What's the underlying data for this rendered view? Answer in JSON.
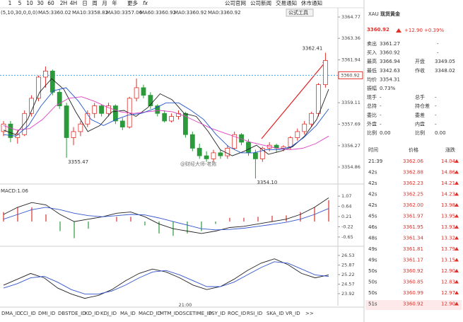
{
  "toolbar": {
    "periods": [
      "1",
      "5",
      "10",
      "30",
      "60",
      "2H",
      "4H",
      "日",
      "周",
      "月",
      "年"
    ],
    "more": "更多",
    "fx": "fx",
    "links": [
      "公司官网",
      "公司新闻",
      "交易通知",
      "休市通知"
    ]
  },
  "indicator_line": {
    "params": "(5,10,30,0,0,0)",
    "items": [
      "MA5:3360.02",
      "MA10:3358.82",
      "MA30:3357.06",
      "MA60:3360.92",
      "MA0:3360.92",
      "MA0:3360.92"
    ],
    "tools": "公式工具"
  },
  "price_chart": {
    "ylim": [
      3353.83,
      3365.24
    ],
    "yticks": [
      3364.77,
      3363.36,
      3361.94,
      3359.11,
      3357.69,
      3356.27,
      3354.86
    ],
    "last_price": 3360.92,
    "candles": [
      [
        3357.2,
        3357.9,
        3356.9,
        3357.7
      ],
      [
        3357.7,
        3357.9,
        3356.5,
        3356.8
      ],
      [
        3356.8,
        3357.3,
        3356.4,
        3357.0
      ],
      [
        3357.0,
        3358.6,
        3356.9,
        3358.4
      ],
      [
        3358.4,
        3359.6,
        3358.2,
        3359.4
      ],
      [
        3359.4,
        3360.9,
        3359.2,
        3360.8
      ],
      [
        3360.8,
        3361.5,
        3360.1,
        3361.2
      ],
      [
        3361.2,
        3361.3,
        3359.6,
        3359.8
      ],
      [
        3359.8,
        3360.0,
        3358.7,
        3358.9
      ],
      [
        3358.9,
        3359.1,
        3355.47,
        3356.8
      ],
      [
        3356.8,
        3357.5,
        3356.3,
        3357.2
      ],
      [
        3357.2,
        3357.9,
        3356.9,
        3357.7
      ],
      [
        3357.7,
        3358.6,
        3357.5,
        3358.4
      ],
      [
        3358.4,
        3359.1,
        3358.1,
        3358.9
      ],
      [
        3358.9,
        3359.0,
        3358.2,
        3358.4
      ],
      [
        3358.4,
        3359.1,
        3358.2,
        3358.9
      ],
      [
        3358.9,
        3359.0,
        3357.7,
        3357.9
      ],
      [
        3357.9,
        3358.1,
        3357.3,
        3357.5
      ],
      [
        3357.5,
        3359.5,
        3357.4,
        3359.4
      ],
      [
        3359.4,
        3360.7,
        3359.2,
        3360.1
      ],
      [
        3360.1,
        3360.3,
        3359.4,
        3359.6
      ],
      [
        3359.6,
        3359.8,
        3358.7,
        3358.9
      ],
      [
        3358.9,
        3359.0,
        3358.2,
        3358.4
      ],
      [
        3358.4,
        3358.6,
        3357.8,
        3357.9
      ],
      [
        3357.9,
        3358.4,
        3357.8,
        3358.2
      ],
      [
        3358.2,
        3358.6,
        3358.0,
        3358.4
      ],
      [
        3358.4,
        3358.5,
        3356.8,
        3357.0
      ],
      [
        3357.0,
        3357.2,
        3355.9,
        3356.1
      ],
      [
        3356.1,
        3356.4,
        3355.4,
        3355.6
      ],
      [
        3355.6,
        3355.9,
        3355.2,
        3355.4
      ],
      [
        3355.4,
        3356.0,
        3355.2,
        3355.8
      ],
      [
        3355.8,
        3356.0,
        3355.4,
        3355.6
      ],
      [
        3355.6,
        3356.3,
        3355.4,
        3356.1
      ],
      [
        3356.1,
        3357.2,
        3356.0,
        3357.0
      ],
      [
        3357.0,
        3357.1,
        3356.3,
        3356.5
      ],
      [
        3356.5,
        3356.7,
        3355.6,
        3355.8
      ],
      [
        3355.8,
        3356.0,
        3354.1,
        3355.4
      ],
      [
        3355.4,
        3356.2,
        3355.2,
        3356.1
      ],
      [
        3356.1,
        3356.5,
        3355.9,
        3356.3
      ],
      [
        3356.3,
        3356.4,
        3355.8,
        3356.1
      ],
      [
        3356.1,
        3356.3,
        3355.9,
        3356.2
      ],
      [
        3356.2,
        3356.9,
        3356.0,
        3356.8
      ],
      [
        3356.8,
        3357.4,
        3356.6,
        3357.2
      ],
      [
        3357.2,
        3357.9,
        3357.0,
        3357.7
      ],
      [
        3357.7,
        3358.5,
        3357.5,
        3358.4
      ],
      [
        3358.4,
        3360.4,
        3358.2,
        3360.3
      ],
      [
        3360.3,
        3362.41,
        3360.1,
        3361.9
      ]
    ],
    "ma_lines": [
      {
        "color": "#222222",
        "values": [
          3357.3,
          3357.0,
          3358.0,
          3359.8,
          3360.7,
          3360.0,
          3358.5,
          3357.2,
          3357.6,
          3358.5,
          3358.6,
          3358.2,
          3358.8,
          3359.7,
          3359.3,
          3358.4,
          3358.2,
          3357.2,
          3356.0,
          3355.6,
          3355.9,
          3356.3,
          3355.7,
          3355.9,
          3356.2,
          3356.9,
          3358.0,
          3360.0
        ]
      },
      {
        "color": "#e040c0",
        "values": [
          3357.6,
          3357.3,
          3357.4,
          3358.0,
          3358.9,
          3359.4,
          3359.5,
          3359.2,
          3358.8,
          3358.5,
          3358.4,
          3358.5,
          3358.6,
          3358.5,
          3358.2,
          3357.8,
          3357.4,
          3357.1,
          3356.8,
          3356.5,
          3356.3,
          3356.1,
          3356.0,
          3356.1,
          3356.4,
          3356.9
        ]
      },
      {
        "color": "#2255cc",
        "values": [
          3357.0,
          3356.9,
          3357.6,
          3358.9,
          3359.9,
          3360.1,
          3359.2,
          3358.0,
          3357.6,
          3358.0,
          3358.3,
          3358.4,
          3358.7,
          3359.1,
          3359.1,
          3358.6,
          3358.0,
          3357.0,
          3356.2,
          3355.8,
          3355.8,
          3356.0,
          3356.0,
          3356.2,
          3356.8,
          3357.6,
          3358.7
        ]
      }
    ],
    "annotations": [
      3362.41,
      3355.47,
      {
        "value": 3354.1,
        "label": "3354.10"
      }
    ],
    "watermark": "@财经大师-老陈",
    "time_label": "21:00"
  },
  "macd": {
    "title": "MACD:1.06",
    "ylim": [
      -0.95,
      1.43
    ],
    "yticks": [
      1.07,
      0.64,
      0.21,
      -0.22,
      -0.65
    ],
    "hist": [
      0.4,
      0.6,
      0.6,
      0.3,
      -0.4,
      -0.7,
      -0.3,
      0.0,
      0.2,
      0.2,
      -0.16,
      -0.5,
      -0.6,
      -0.5,
      -0.4,
      -0.1,
      0.16,
      0.16,
      0.2,
      0.24,
      0.26,
      0.4,
      0.6,
      0.9
    ],
    "dif": [
      0.3,
      0.6,
      0.8,
      0.7,
      0.3,
      0.0,
      0.1,
      0.2,
      0.35,
      0.4,
      0.2,
      -0.1,
      -0.3,
      -0.4,
      -0.5,
      -0.4,
      -0.25,
      -0.2,
      -0.1,
      0.0,
      0.1,
      0.3,
      0.6,
      1.0
    ],
    "dea": [
      0.1,
      0.3,
      0.5,
      0.6,
      0.5,
      0.35,
      0.25,
      0.2,
      0.25,
      0.3,
      0.28,
      0.15,
      0.0,
      -0.15,
      -0.3,
      -0.35,
      -0.33,
      -0.28,
      -0.2,
      -0.12,
      -0.03,
      0.1,
      0.3,
      0.55
    ]
  },
  "kdj": {
    "ylim": [
      23.29,
      26.96
    ],
    "yticks": [
      26.53,
      25.87,
      25.22,
      24.57,
      23.92
    ],
    "lines": [
      {
        "color": "#222222",
        "values": [
          24.5,
          24.9,
          25.3,
          25.0,
          24.3,
          23.9,
          23.6,
          23.8,
          24.2,
          24.8,
          25.3,
          25.6,
          25.4,
          25.0,
          24.5,
          24.2,
          24.4,
          24.9,
          25.5,
          26.0,
          26.3,
          25.9,
          25.3,
          25.0,
          25.2
        ]
      },
      {
        "color": "#3355cc",
        "values": [
          24.3,
          24.6,
          25.0,
          25.1,
          24.7,
          24.2,
          23.9,
          23.9,
          24.1,
          24.5,
          25.0,
          25.4,
          25.5,
          25.2,
          24.8,
          24.4,
          24.4,
          24.7,
          25.2,
          25.7,
          26.1,
          26.0,
          25.6,
          25.2,
          25.1
        ]
      }
    ]
  },
  "tabs": [
    "DMA_ID",
    "CCI_ID",
    "DMI_ID",
    "DBSTDE_ID",
    "KD_ID",
    "KDJ_ID",
    "MA_ID",
    "MACD_ID",
    "MTM_ID",
    "OSCETIME_ID",
    "PSY_ID",
    "ROC_ID",
    "RSI_ID",
    "SKA_ID",
    "VR_ID",
    ">>"
  ],
  "quote": {
    "symbol": "XAU",
    "name": "现货黄金",
    "price": "3360.92",
    "change": "+12.90",
    "change_pct": "+0.39%",
    "rows": [
      [
        "卖出",
        "3361.27",
        "-"
      ],
      [
        "买入",
        "3360.92",
        "-"
      ],
      [
        "最高",
        "3366.94",
        "开盘",
        "3349.05"
      ],
      [
        "最低",
        "3342.63",
        "作收",
        "3348.02"
      ],
      [
        "均价",
        "3354.31"
      ],
      [
        "振幅",
        "0.73%"
      ],
      [
        "现手",
        "-",
        "总手",
        "-"
      ],
      [
        "总持",
        "-",
        "持仓差",
        "-"
      ],
      [
        "委比",
        "-",
        "委差",
        "-"
      ],
      [
        "外盘",
        "-",
        "内盘",
        "-"
      ],
      [
        "比例",
        "0.00",
        "比例",
        "0.00"
      ]
    ],
    "trade_header": [
      "时间",
      "价格",
      "涨跌"
    ],
    "trades": [
      [
        "21:39",
        "3362.06",
        "14.04"
      ],
      [
        "42s",
        "3362.88",
        "14.86"
      ],
      [
        "42s",
        "3362.23",
        "14.21"
      ],
      [
        "42s",
        "3362.25",
        "14.23"
      ],
      [
        "42s",
        "3362.00",
        "13.98"
      ],
      [
        "45s",
        "3361.97",
        "13.95"
      ],
      [
        "46s",
        "3361.95",
        "13.93"
      ],
      [
        "48s",
        "3361.34",
        "13.32"
      ],
      [
        "49s",
        "3361.81",
        "13.79"
      ],
      [
        "49s",
        "3361.17",
        "13.15"
      ],
      [
        "50s",
        "3360.92",
        "12.90"
      ],
      [
        "50s",
        "3360.85",
        "12.83"
      ],
      [
        "50s",
        "3360.99",
        "12.97"
      ],
      [
        "51s",
        "3360.92",
        "12.90"
      ]
    ]
  }
}
